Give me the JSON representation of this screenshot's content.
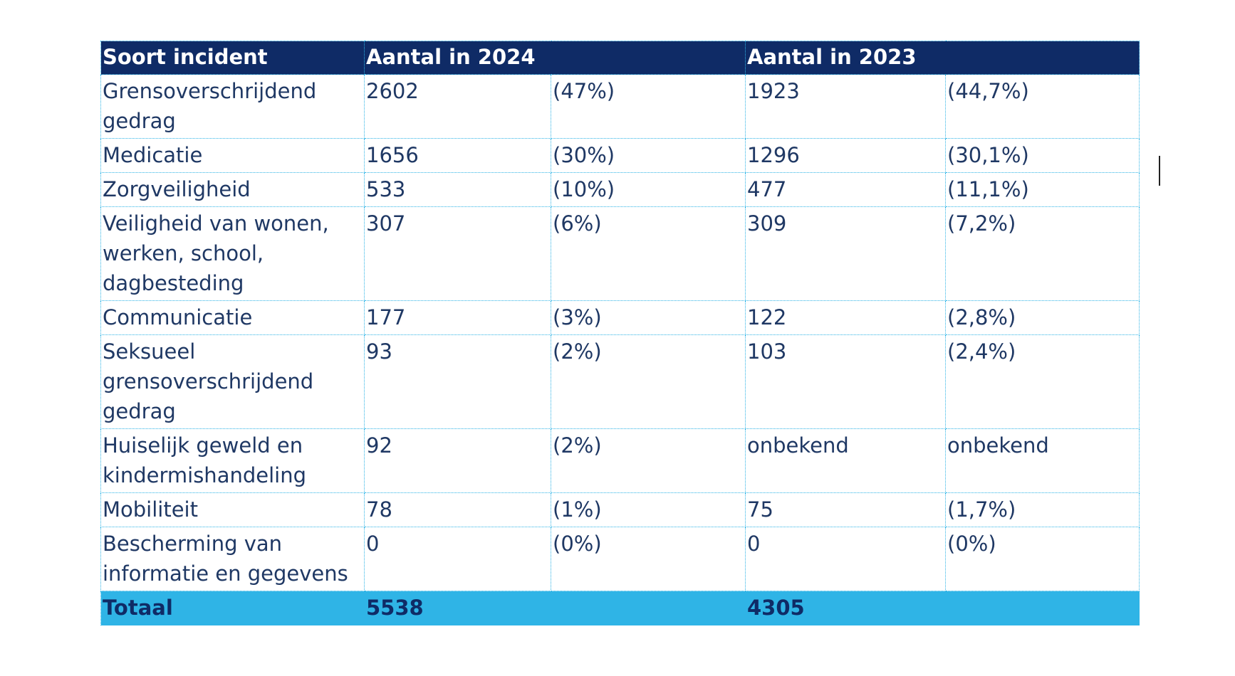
{
  "table": {
    "headers": {
      "type": "Soort incident",
      "count_2024": "Aantal in 2024",
      "count_2023": "Aantal in 2023"
    },
    "rows": [
      {
        "type": "Grensoverschrijdend gedrag",
        "count_2024": "2602",
        "pct_2024": "(47%)",
        "count_2023": "1923",
        "pct_2023": "(44,7%)"
      },
      {
        "type": "Medicatie",
        "count_2024": "1656",
        "pct_2024": "(30%)",
        "count_2023": "1296",
        "pct_2023": "(30,1%)"
      },
      {
        "type": "Zorgveiligheid",
        "count_2024": "533",
        "pct_2024": "(10%)",
        "count_2023": "477",
        "pct_2023": "(11,1%)"
      },
      {
        "type": "Veiligheid van wonen, werken, school, dagbesteding",
        "count_2024": "307",
        "pct_2024": "(6%)",
        "count_2023": "309",
        "pct_2023": "(7,2%)"
      },
      {
        "type": "Communicatie",
        "count_2024": "177",
        "pct_2024": "(3%)",
        "count_2023": "122",
        "pct_2023": "(2,8%)"
      },
      {
        "type": "Seksueel grensoverschrijdend gedrag",
        "count_2024": "93",
        "pct_2024": "(2%)",
        "count_2023": "103",
        "pct_2023": "(2,4%)"
      },
      {
        "type": "Huiselijk geweld en kindermishandeling",
        "count_2024": "92",
        "pct_2024": "(2%)",
        "count_2023": "onbekend",
        "pct_2023": "onbekend"
      },
      {
        "type": "Mobiliteit",
        "count_2024": "78",
        "pct_2024": "(1%)",
        "count_2023": "75",
        "pct_2023": "(1,7%)"
      },
      {
        "type": "Bescherming van informatie en gegevens",
        "count_2024": "0",
        "pct_2024": "(0%)",
        "count_2023": "0",
        "pct_2023": "(0%)"
      }
    ],
    "total": {
      "label": "Totaal",
      "count_2024": "5538",
      "count_2023": "4305"
    }
  },
  "colors": {
    "header_background": "#0f2b66",
    "header_text": "#ffffff",
    "body_text": "#1f3864",
    "total_background": "#2fb4e6",
    "total_text": "#0f2b66",
    "grid_lines": "#2fb4e6"
  }
}
